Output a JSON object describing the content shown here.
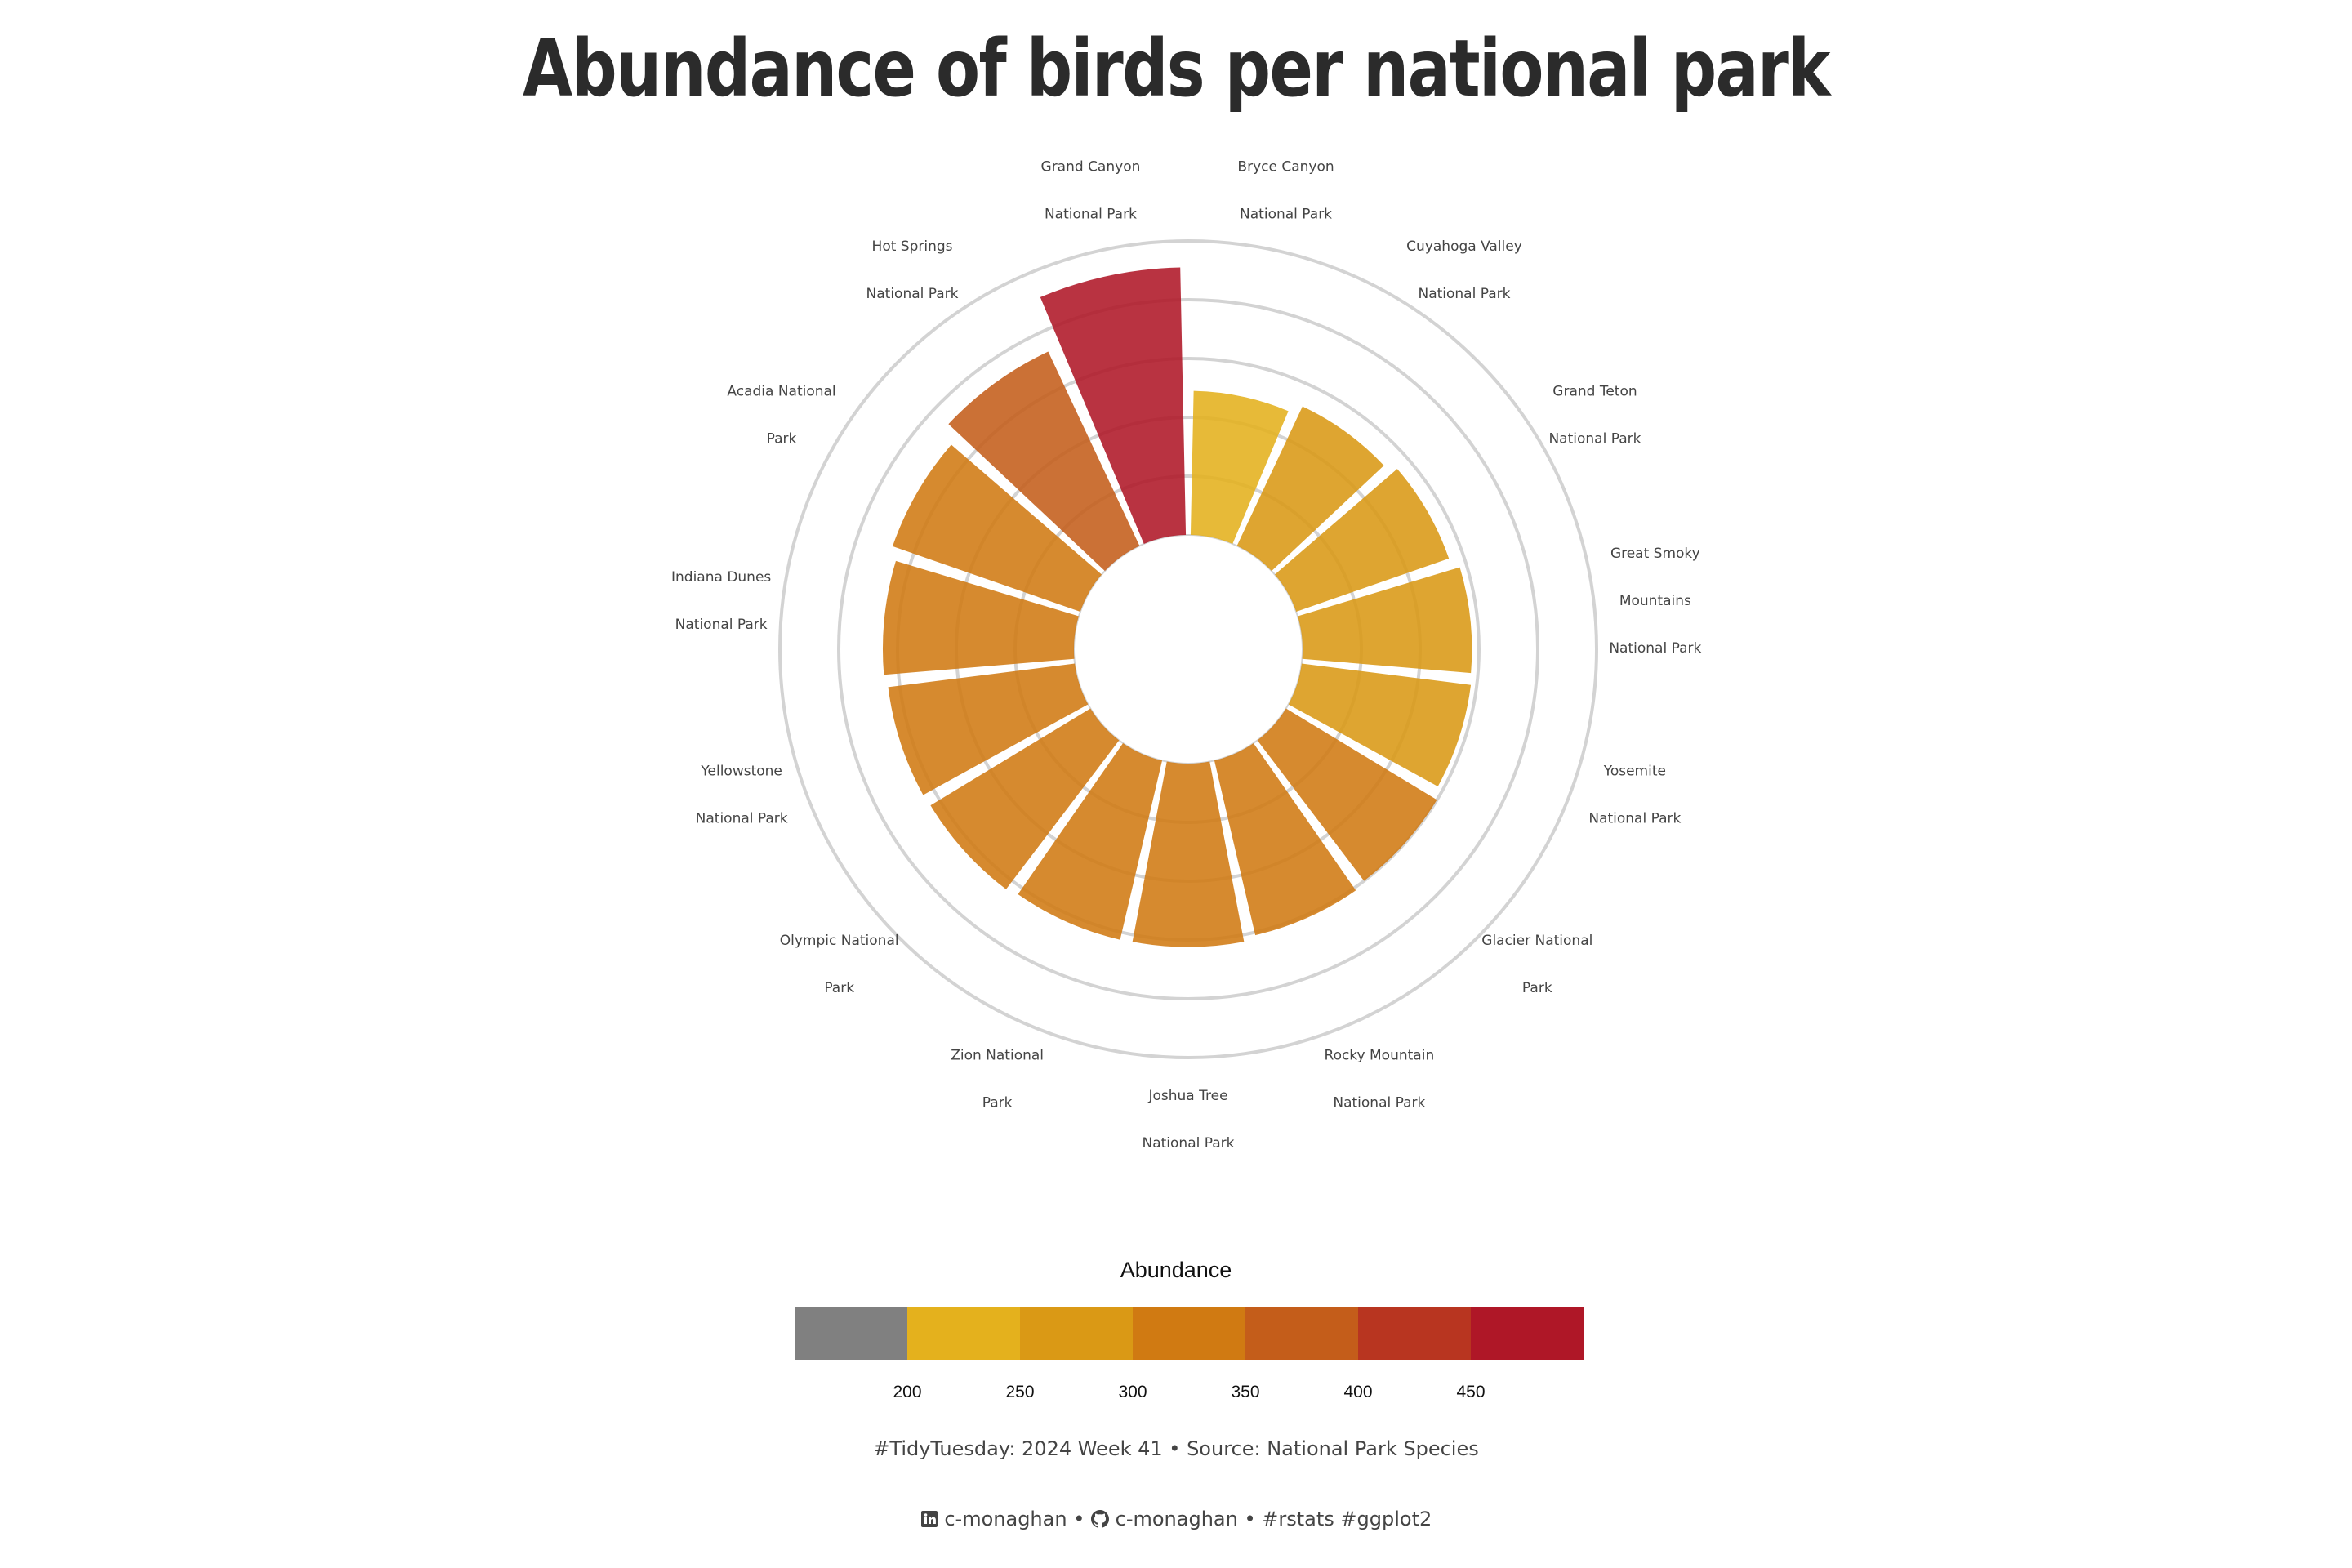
{
  "title": "Abundance of birds per national park",
  "chart_data": {
    "type": "bar",
    "coord": "polar",
    "categories": [
      "Bryce Canyon National Park",
      "Cuyahoga Valley National Park",
      "Grand Teton National Park",
      "Great Smoky Mountains National Park",
      "Yosemite National Park",
      "Glacier National Park",
      "Rocky Mountain National Park",
      "Joshua Tree National Park",
      "Zion National Park",
      "Olympic National Park",
      "Yellowstone National Park",
      "Indiana Dunes National Park",
      "Acadia National Park",
      "Hot Springs National Park",
      "Grand Canyon National Park"
    ],
    "category_lines": [
      [
        "Bryce Canyon",
        "National Park"
      ],
      [
        "Cuyahoga Valley",
        "National Park"
      ],
      [
        "Grand Teton",
        "National Park"
      ],
      [
        "Great Smoky",
        "Mountains",
        "National Park"
      ],
      [
        "Yosemite",
        "National Park"
      ],
      [
        "Glacier National",
        "Park"
      ],
      [
        "Rocky Mountain",
        "National Park"
      ],
      [
        "Joshua Tree",
        "National Park"
      ],
      [
        "Zion National",
        "Park"
      ],
      [
        "Olympic National",
        "Park"
      ],
      [
        "Yellowstone",
        "National Park"
      ],
      [
        "Indiana Dunes",
        "National Park"
      ],
      [
        "Acadia National",
        "Park"
      ],
      [
        "Hot Springs",
        "National Park"
      ],
      [
        "Grand Canyon",
        "National Park"
      ]
    ],
    "values": [
      245,
      262,
      275,
      288,
      290,
      300,
      305,
      312,
      313,
      318,
      320,
      325,
      338,
      365,
      455
    ],
    "ylim": [
      0,
      500
    ],
    "grid_values": [
      100,
      200,
      300,
      400,
      500
    ],
    "grid": true
  },
  "legend": {
    "title": "Abundance",
    "ticks": [
      "200",
      "250",
      "300",
      "350",
      "400",
      "450"
    ],
    "colors": [
      "#808080",
      "#E4B11D",
      "#DA9915",
      "#D07A12",
      "#C45D1A",
      "#B83520",
      "#AF1727"
    ]
  },
  "caption": {
    "line1": "#TidyTuesday: 2024 Week 41 • Source: National Park Species",
    "linkedin_handle": "c-monaghan",
    "sep1": "•",
    "github_handle": "c-monaghan",
    "sep2": "•",
    "tags": "#rstats #ggplot2"
  }
}
